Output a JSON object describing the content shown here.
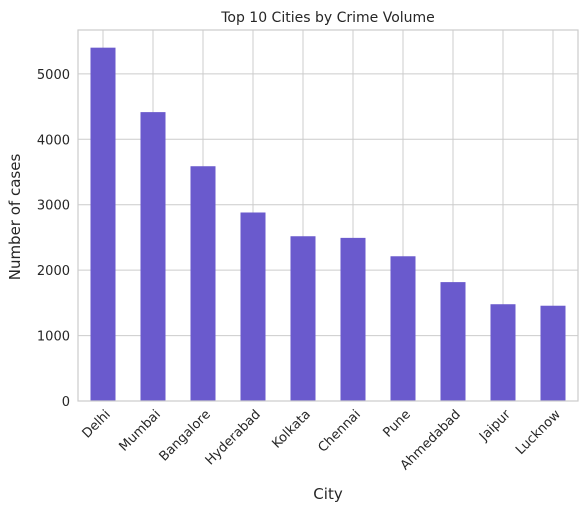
{
  "chart_data": {
    "type": "bar",
    "title": "Top 10 Cities by Crime Volume",
    "xlabel": "City",
    "ylabel": "Number of cases",
    "categories": [
      "Delhi",
      "Mumbai",
      "Bangalore",
      "Hyderabad",
      "Kolkata",
      "Chennai",
      "Pune",
      "Ahmedabad",
      "Jaipur",
      "Lucknow"
    ],
    "values": [
      5400,
      4415,
      3588,
      2881,
      2518,
      2493,
      2212,
      1817,
      1479,
      1456
    ],
    "ylim": [
      0,
      5670
    ],
    "yticks": [
      "0",
      "1000",
      "2000",
      "3000",
      "4000",
      "5000"
    ],
    "grid": true,
    "bar_color": "#6a5acd",
    "grid_color": "#cccccc"
  }
}
